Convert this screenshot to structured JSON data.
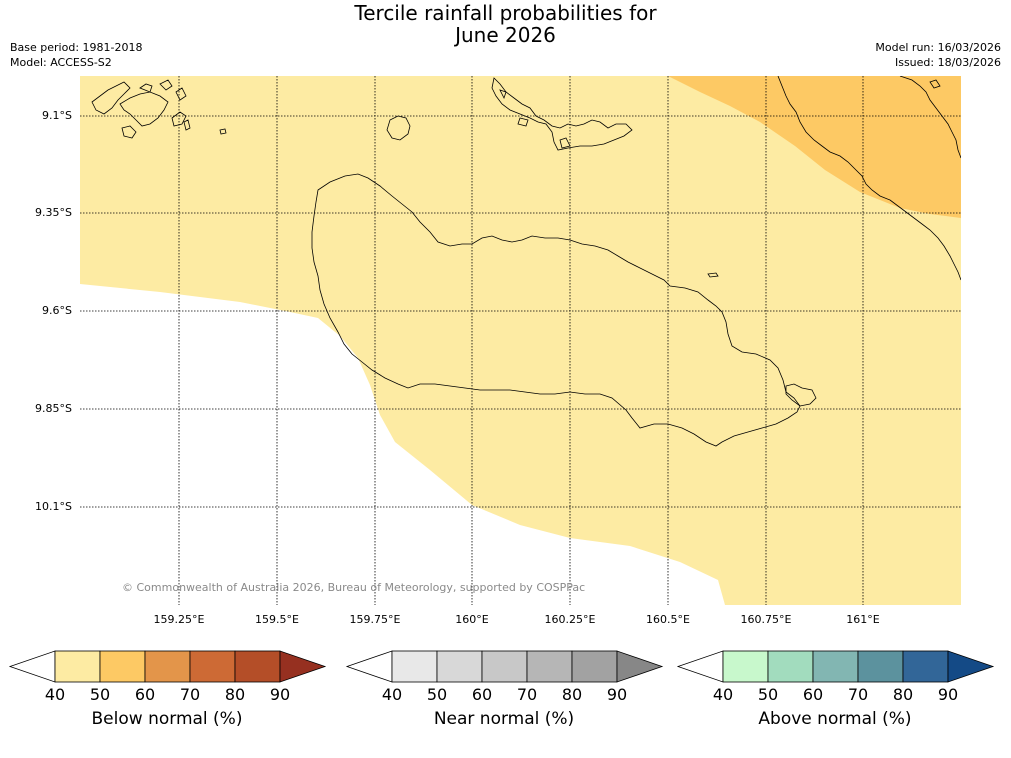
{
  "title_line1": "Tercile rainfall probabilities for",
  "title_line2": "June 2026",
  "base_period": "Base period: 1981-2018",
  "model": "Model: ACCESS-S2",
  "model_run": "Model run: 16/03/2026",
  "issued": "Issued: 18/03/2026",
  "copyright": "© Commonwealth of Australia 2026, Bureau of Meteorology, supported by COSPPac",
  "lat_labels": [
    "9.1°S",
    "9.35°S",
    "9.6°S",
    "9.85°S",
    "10.1°S"
  ],
  "lon_labels": [
    "159.25°E",
    "159.5°E",
    "159.75°E",
    "160°E",
    "160.25°E",
    "160.5°E",
    "160.75°E",
    "161°E"
  ],
  "map_fill": {
    "below_normal_40_50": "#fdeba3",
    "below_normal_50_60": "#fdc964",
    "no_data": "#ffffff"
  },
  "colorbars": [
    {
      "title": "Below normal (%)",
      "ticks": [
        "40",
        "50",
        "60",
        "70",
        "80",
        "90"
      ],
      "colors": [
        "#ffffff",
        "#fdeba3",
        "#fdc964",
        "#e3954a",
        "#cd6a35",
        "#b44e28",
        "#963020"
      ]
    },
    {
      "title": "Near normal (%)",
      "ticks": [
        "40",
        "50",
        "60",
        "70",
        "80",
        "90"
      ],
      "colors": [
        "#ffffff",
        "#e8e8e8",
        "#d8d8d8",
        "#c8c8c8",
        "#b6b6b6",
        "#a2a2a2",
        "#878787"
      ]
    },
    {
      "title": "Above normal (%)",
      "ticks": [
        "40",
        "50",
        "60",
        "70",
        "80",
        "90"
      ],
      "colors": [
        "#ffffff",
        "#c8f8cc",
        "#a2dcbe",
        "#82b6b2",
        "#5c929e",
        "#326698",
        "#144a86"
      ]
    }
  ]
}
